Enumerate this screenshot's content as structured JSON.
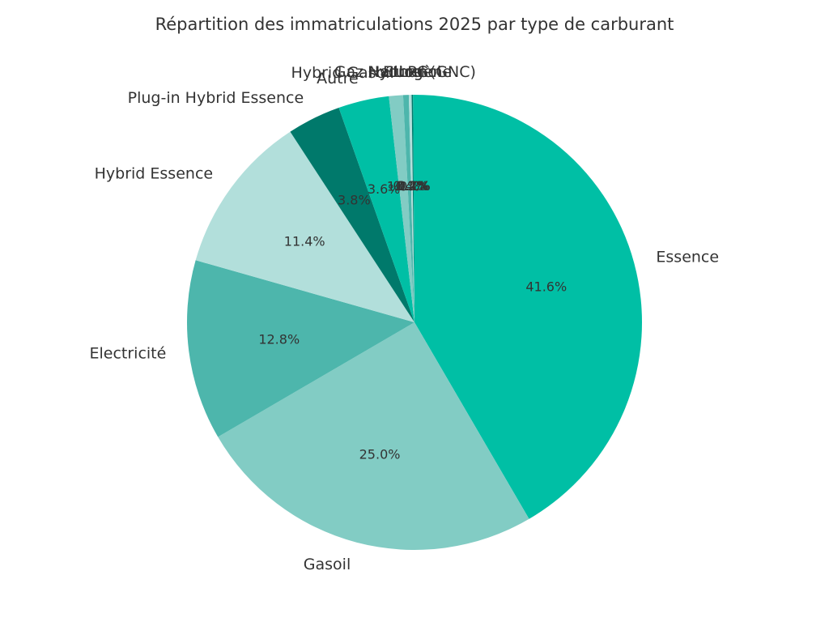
{
  "chart_data": {
    "type": "pie",
    "title": "Répartition des immatriculations 2025 par type de carburant",
    "start_angle": 90,
    "direction": "clockwise",
    "slices": [
      {
        "label": "Essence",
        "value": 41.6,
        "pct": "41.6%",
        "color": "#00bfa5"
      },
      {
        "label": "Gasoil",
        "value": 25.0,
        "pct": "25.0%",
        "color": "#82ccc4"
      },
      {
        "label": "Electricité",
        "value": 12.8,
        "pct": "12.8%",
        "color": "#4db6ac"
      },
      {
        "label": "Hybrid Essence",
        "value": 11.4,
        "pct": "11.4%",
        "color": "#b2dfdb"
      },
      {
        "label": "Plug-in Hybrid Essence",
        "value": 3.8,
        "pct": "3.8%",
        "color": "#00796b"
      },
      {
        "label": "Autre",
        "value": 3.6,
        "pct": "3.6%",
        "color": "#00bfa5"
      },
      {
        "label": "Hybrid Gasoil",
        "value": 1.0,
        "pct": "1.0%",
        "color": "#82ccc4"
      },
      {
        "label": "Gaz Naturel (GNC)",
        "value": 0.4,
        "pct": "0.4%",
        "color": "#4db6ac"
      },
      {
        "label": "Hydrogène",
        "value": 0.2,
        "pct": "0.2%",
        "color": "#b2dfdb"
      },
      {
        "label": "Ethanol",
        "value": 0.1,
        "pct": "0.1%",
        "color": "#00796b"
      },
      {
        "label": "LPG",
        "value": 0.1,
        "pct": "0.1%",
        "color": "#00bfa5"
      }
    ]
  }
}
